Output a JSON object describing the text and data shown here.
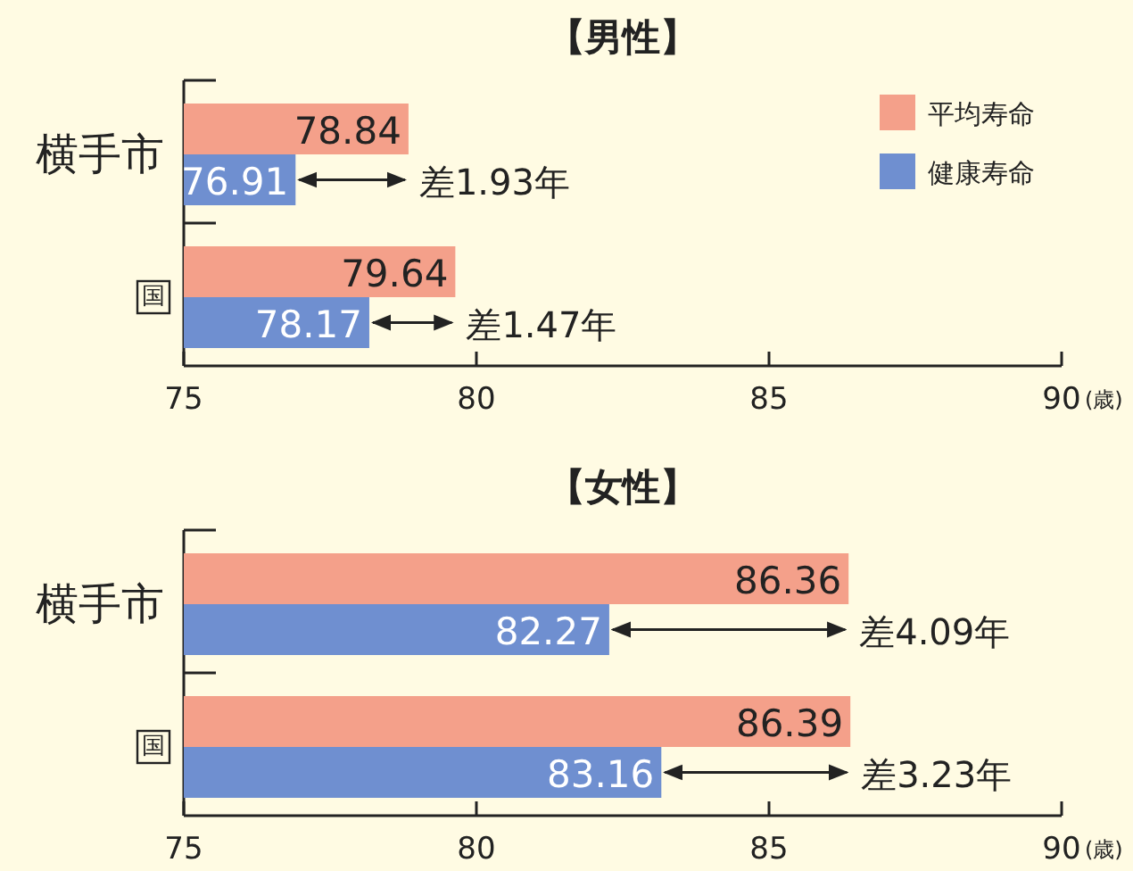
{
  "chart_data": [
    {
      "type": "bar",
      "orientation": "horizontal",
      "title": "【男性】",
      "xlabel": "(歳)",
      "categories": [
        "横手市",
        "国"
      ],
      "series": [
        {
          "name": "平均寿命",
          "color": "#f4a08a",
          "values": [
            78.84,
            79.64
          ]
        },
        {
          "name": "健康寿命",
          "color": "#6f8fd0",
          "values": [
            76.91,
            78.17
          ]
        }
      ],
      "xlim": [
        75,
        90
      ],
      "xticks": [
        75,
        80,
        85,
        90
      ],
      "data_labels": true,
      "legend": "top right",
      "annotations": [
        {
          "text": "差1.93年",
          "x": 78.84,
          "y": "横手市"
        },
        {
          "text": "差1.47年",
          "x": 79.64,
          "y": "国"
        }
      ]
    },
    {
      "type": "bar",
      "orientation": "horizontal",
      "title": "【女性】",
      "xlabel": "(歳)",
      "categories": [
        "横手市",
        "国"
      ],
      "series": [
        {
          "color": "#f4a08a",
          "values": [
            86.36,
            86.39
          ]
        },
        {
          "color": "#6f8fd0",
          "values": [
            82.27,
            83.16
          ]
        }
      ],
      "xlim": [
        75,
        90
      ],
      "xticks": [
        75,
        80,
        85,
        90
      ],
      "data_labels": true,
      "annotations": [
        {
          "text": "差4.09年",
          "x": 86.36,
          "y": "横手市"
        },
        {
          "text": "差3.23年",
          "x": 86.39,
          "y": "国"
        }
      ]
    }
  ]
}
